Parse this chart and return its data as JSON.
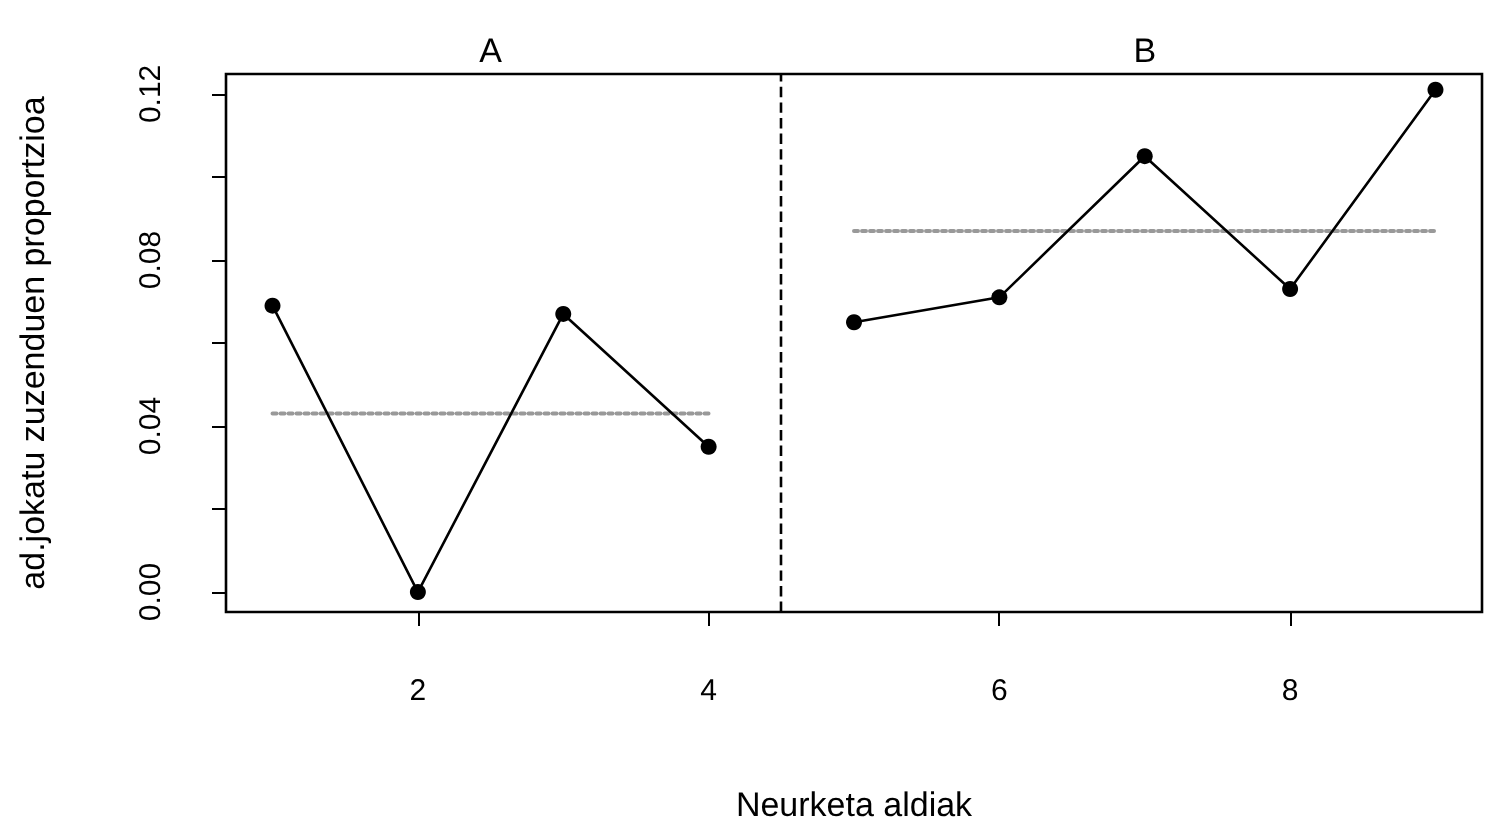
{
  "chart_data": {
    "type": "line",
    "xlabel": "Neurketa aldiak",
    "ylabel": "ad.jokatu zuzenduen proportzioa",
    "series": [
      {
        "color": "#000000",
        "x": [
          1,
          2,
          3,
          4
        ],
        "values": [
          0.069,
          0,
          0.067,
          0.035
        ]
      },
      {
        "color": "#000000",
        "x": [
          5,
          6,
          7,
          8,
          9
        ],
        "values": [
          0.065,
          0.071,
          0.105,
          0.073,
          0.121
        ]
      },
      {
        "color": "#999999",
        "x": [
          1,
          4
        ],
        "values": [
          0.043,
          0.043
        ],
        "marker": "none",
        "line_style": "dotted"
      },
      {
        "color": "#999999",
        "x": [
          5,
          9
        ],
        "values": [
          0.087,
          0.087
        ],
        "marker": "none",
        "line_style": "dotted"
      }
    ],
    "xlim": [
      0.68,
      9.32
    ],
    "ylim": [
      -0.0048,
      0.1248
    ],
    "xticks": [
      2,
      4,
      6,
      8
    ],
    "yticks": [
      {
        "value": 0,
        "label": "0.00"
      },
      {
        "value": 0.02,
        "label": null
      },
      0.04,
      {
        "value": 0.06,
        "label": null
      },
      0.08,
      {
        "value": 0.1,
        "label": null
      },
      0.12
    ],
    "ref_lines": [
      {
        "axis": "x",
        "value": 4.5,
        "line_style": "dashed",
        "color": "#000000"
      }
    ],
    "annotations": [
      "A",
      "B"
    ],
    "marker": "circle",
    "line_style": "solid"
  }
}
